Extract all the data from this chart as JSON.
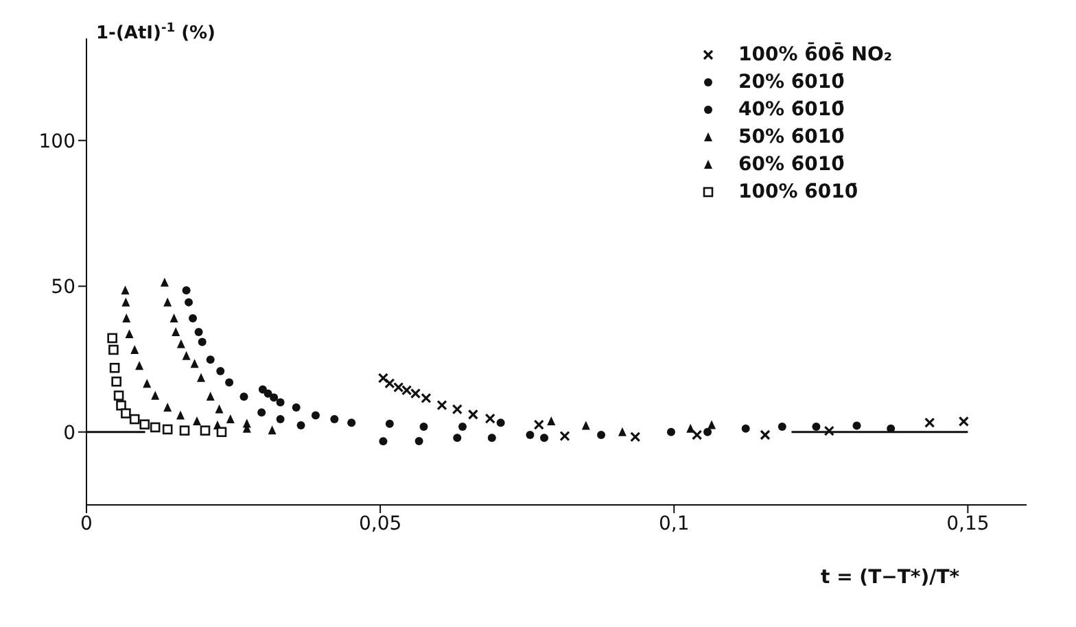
{
  "chart_data": {
    "type": "scatter",
    "ylabel": "1-(AtI)$^{-1}$ (%)",
    "xlabel": "t = (T−T*)/T*",
    "xlim": [
      0,
      0.16
    ],
    "ylim": [
      -25,
      135
    ],
    "xticks": [
      0,
      {
        "value": 0.05,
        "label": "0,05"
      },
      {
        "value": 0.1,
        "label": "0,1"
      },
      {
        "value": 0.15,
        "label": "0,15"
      }
    ],
    "yticks": [
      0,
      50,
      100
    ],
    "grid": false,
    "legend": "top right",
    "series": [
      {
        "name": "100% 6̄06̄ NO₂",
        "color": "#111111",
        "marker": "cross",
        "x": [
          0.0505,
          0.0516,
          0.0531,
          0.0545,
          0.056,
          0.0578,
          0.0605,
          0.0631,
          0.0658,
          0.0687,
          0.077,
          0.0814,
          0.0934,
          0.1039,
          0.1155,
          0.1264,
          0.1435,
          0.1493
        ],
        "values": [
          18.5,
          16.7,
          15.3,
          14.3,
          13.2,
          11.6,
          9.2,
          7.8,
          6,
          4.6,
          2.5,
          -1.4,
          -1.7,
          -1,
          -1,
          0.4,
          3.2,
          3.6
        ]
      },
      {
        "name": "20% 6̄010̄",
        "color": "#111111",
        "marker": "circle",
        "x": [
          0.03,
          0.0309,
          0.0319,
          0.033,
          0.0357,
          0.039,
          0.0422,
          0.0451,
          0.0516,
          0.0574,
          0.064,
          0.0705,
          0.0755,
          0.0876,
          0.0995,
          0.1057,
          0.1184,
          0.1242,
          0.1311,
          0.1369
        ],
        "values": [
          14.6,
          13.2,
          11.8,
          10.2,
          8.4,
          5.7,
          4.4,
          3.2,
          2.8,
          1.8,
          1.8,
          3.2,
          -1,
          -1,
          0,
          0,
          1.8,
          1.8,
          2.2,
          1.2
        ]
      },
      {
        "name": "40% 6̄010̄",
        "color": "#111111",
        "marker": "circle",
        "x": [
          0.017,
          0.0174,
          0.0181,
          0.0191,
          0.0197,
          0.0211,
          0.0228,
          0.0243,
          0.0268,
          0.0298,
          0.033,
          0.0365,
          0.0505,
          0.0566,
          0.0631,
          0.069,
          0.0779,
          0.1122
        ],
        "values": [
          48.6,
          44.5,
          39,
          34.3,
          30.9,
          24.8,
          20.9,
          17,
          12.1,
          6.7,
          4.4,
          2.3,
          -3.2,
          -3.1,
          -2,
          -2,
          -2,
          1.2
        ]
      },
      {
        "name": "50% 6̄010̄",
        "color": "#111111",
        "marker": "triangle",
        "x": [
          0.0133,
          0.0138,
          0.0149,
          0.0152,
          0.0161,
          0.017,
          0.0184,
          0.0195,
          0.0211,
          0.0226,
          0.0245,
          0.0273,
          0.0791,
          0.085,
          0.0912,
          0.1028,
          0.1064
        ],
        "values": [
          51.3,
          44.5,
          39,
          34.3,
          30.2,
          26.1,
          23.4,
          18.6,
          12.2,
          7.8,
          4.4,
          2.9,
          3.7,
          2.2,
          0,
          1.2,
          2.4
        ]
      },
      {
        "name": "60% 6̄010̄",
        "color": "#111111",
        "marker": "triangle",
        "x": [
          0.0066,
          0.0067,
          0.0068,
          0.0073,
          0.0082,
          0.009,
          0.0103,
          0.0117,
          0.0138,
          0.016,
          0.0188,
          0.0223,
          0.0273,
          0.0316
        ],
        "values": [
          48.6,
          44.5,
          39,
          33.6,
          28.2,
          22.7,
          16.6,
          12.5,
          8.4,
          5.7,
          3.7,
          2.3,
          1.2,
          0.6
        ]
      },
      {
        "name": "100% 6̄010̄",
        "color": "#111111",
        "marker": "square",
        "x": [
          0.0044,
          0.0046,
          0.0048,
          0.0051,
          0.0055,
          0.0059,
          0.0067,
          0.0082,
          0.0099,
          0.0117,
          0.0138,
          0.0167,
          0.0202,
          0.023
        ],
        "values": [
          32.2,
          28.2,
          22,
          17.3,
          12.5,
          9.1,
          6.4,
          4.4,
          2.6,
          1.6,
          0.9,
          0.5,
          0.5,
          0
        ]
      },
      {
        "type": "line",
        "color": "#111111",
        "x": [
          0,
          0.01,
          0.065,
          0.12,
          0.15
        ],
        "values": [
          0,
          0,
          null,
          0,
          0
        ]
      }
    ]
  }
}
